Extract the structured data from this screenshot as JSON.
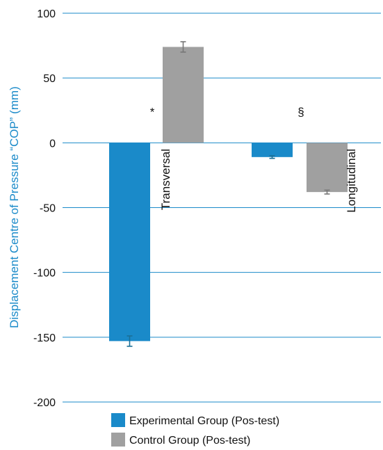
{
  "chart_data": {
    "type": "bar",
    "title": "",
    "xlabel": "",
    "ylabel": "Displacement Centre of Pressure “COP” (mm)",
    "ylim": [
      -200,
      100
    ],
    "yticks": [
      100,
      50,
      0,
      -50,
      -100,
      -150,
      -200
    ],
    "tick_labels": [
      "100",
      "50",
      "0",
      "-50",
      "-100",
      "-150",
      "-200"
    ],
    "grid": true,
    "legend_position": "bottom",
    "categories": [
      "Transversal",
      "Longitudinal"
    ],
    "series": [
      {
        "name": "Experimental Group (Pos-test)",
        "color": "#1a8ac9",
        "values": [
          -153,
          -11
        ],
        "errors": [
          4,
          1
        ]
      },
      {
        "name": "Control Group (Pos-test)",
        "color": "#a0a0a0",
        "values": [
          74,
          -38
        ],
        "errors": [
          4,
          1.5
        ]
      }
    ],
    "annotations": [
      {
        "text": "*",
        "category": "Transversal",
        "y": 24
      },
      {
        "text": "§",
        "category": "Longitudinal",
        "y": 24
      }
    ],
    "grid_color": "#1a8ac9",
    "error_bar_colors": [
      "#1a6f96",
      "#777777"
    ]
  }
}
